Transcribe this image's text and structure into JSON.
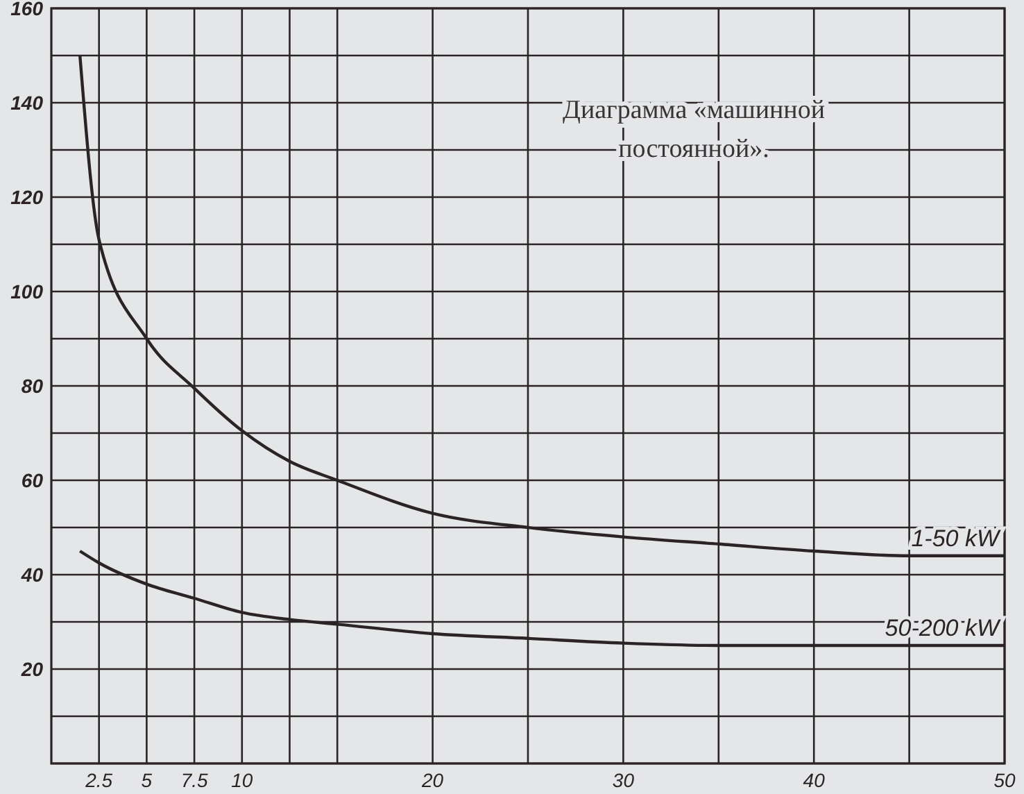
{
  "chart_data": {
    "type": "line",
    "title": "Диаграмма «машинной постоянной».",
    "series": [
      {
        "name": "1-50 kW",
        "color": "#2b2326",
        "x": [
          1.5,
          2.5,
          5,
          7.5,
          10,
          12.5,
          15,
          20,
          25,
          30,
          35,
          40,
          45,
          50
        ],
        "values": [
          150,
          111,
          90,
          79.5,
          70.5,
          64,
          60,
          53,
          50,
          48,
          46.5,
          45,
          44,
          44
        ]
      },
      {
        "name": "50-200 kW",
        "color": "#2b2326",
        "x": [
          1.5,
          2.5,
          5,
          7.5,
          10,
          12.5,
          15,
          20,
          25,
          30,
          35,
          40,
          45,
          50
        ],
        "values": [
          45,
          42.5,
          38,
          35,
          32,
          30.5,
          29.5,
          27.5,
          26.5,
          25.5,
          25,
          25,
          25,
          25
        ]
      }
    ],
    "xlim": [
      0,
      50
    ],
    "ylim": [
      0,
      160
    ],
    "xticks": [
      2.5,
      5,
      7.5,
      10,
      {
        "value": 12.5,
        "label": null
      },
      {
        "value": 15,
        "label": null
      },
      20,
      {
        "value": 25,
        "label": null
      },
      30,
      {
        "value": 35,
        "label": null
      },
      40,
      {
        "value": 45,
        "label": null
      },
      50
    ],
    "yticks": [
      {
        "value": 0,
        "label": null
      },
      {
        "value": 10,
        "label": null
      },
      20,
      {
        "value": 30,
        "label": null
      },
      40,
      {
        "value": 50,
        "label": null
      },
      60,
      {
        "value": 70,
        "label": null
      },
      80,
      {
        "value": 90,
        "label": null
      },
      100,
      {
        "value": 110,
        "label": null
      },
      120,
      {
        "value": 130,
        "label": null
      },
      140,
      {
        "value": 150,
        "label": null
      },
      160
    ],
    "grid": true,
    "marker": "none",
    "line_style": "solid"
  }
}
